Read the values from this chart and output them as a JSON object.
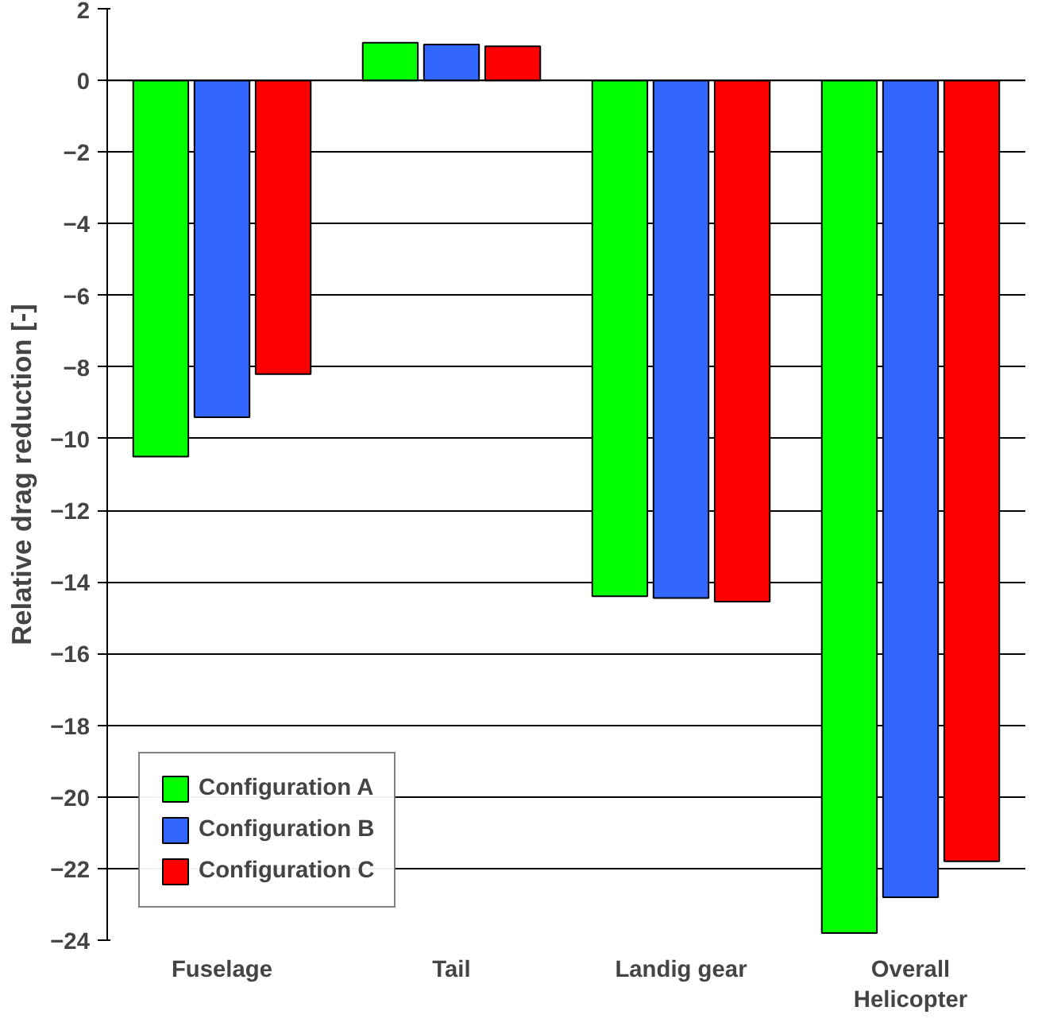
{
  "chart_data": {
    "type": "bar",
    "ylabel": "Relative drag reduction [-]",
    "categories": [
      "Fuselage",
      "Tail",
      "Landig gear",
      "Overall Helicopter"
    ],
    "series": [
      {
        "name": "Configuration A",
        "color": "#00ff00",
        "values": [
          -10.5,
          1.05,
          -14.4,
          -23.8
        ]
      },
      {
        "name": "Configuration B",
        "color": "#3366ff",
        "values": [
          -9.4,
          1.0,
          -14.45,
          -22.8
        ]
      },
      {
        "name": "Configuration C",
        "color": "#ff0000",
        "values": [
          -8.2,
          0.95,
          -14.55,
          -21.8
        ]
      }
    ],
    "ylim": [
      -24,
      2
    ],
    "yticks": [
      -24,
      -22,
      -20,
      -18,
      -16,
      -14,
      -12,
      -10,
      -8,
      -6,
      -4,
      -2,
      0,
      2
    ],
    "grid": "y",
    "legend": "bottom left"
  }
}
